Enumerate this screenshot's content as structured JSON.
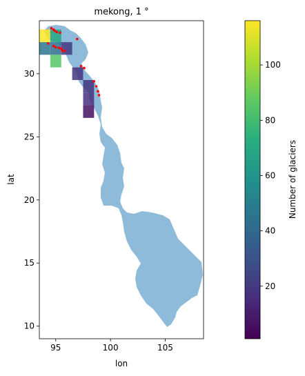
{
  "map": {
    "title": "mekong, 1 °",
    "xlabel": "lon",
    "ylabel": "lat",
    "x_ticks": [
      95,
      100,
      105
    ],
    "y_ticks": [
      10,
      15,
      20,
      25,
      30
    ],
    "xlim": [
      93.5,
      108.5
    ],
    "ylim": [
      9.0,
      34.2
    ],
    "basin_color": "#8fbbda",
    "point_color": "#ff0000"
  },
  "colorbar": {
    "label": "Number of glaciers",
    "ticks": [
      20,
      40,
      60,
      80,
      100
    ],
    "range": [
      1,
      116
    ],
    "colormap": "viridis"
  },
  "chart_data": {
    "type": "heatmap",
    "title": "mekong, 1 °",
    "xlabel": "lon",
    "ylabel": "lat",
    "xlim": [
      93.5,
      108.5
    ],
    "ylim": [
      9.0,
      34.2
    ],
    "cell_size_deg": 1,
    "cells": [
      {
        "lon": 94,
        "lat": 33,
        "count": 116
      },
      {
        "lon": 95,
        "lat": 33,
        "count": 70
      },
      {
        "lon": 94,
        "lat": 32,
        "count": 45
      },
      {
        "lon": 95,
        "lat": 32,
        "count": 42
      },
      {
        "lon": 96,
        "lat": 32,
        "count": 20
      },
      {
        "lon": 95,
        "lat": 31,
        "count": 85
      },
      {
        "lon": 97,
        "lat": 30,
        "count": 18
      },
      {
        "lon": 98,
        "lat": 29,
        "count": 18
      },
      {
        "lon": 98,
        "lat": 28,
        "count": 16
      },
      {
        "lon": 98,
        "lat": 27,
        "count": 6
      }
    ],
    "glacier_points": [
      [
        94.6,
        33.6
      ],
      [
        94.8,
        33.5
      ],
      [
        94.9,
        33.4
      ],
      [
        95.1,
        33.3
      ],
      [
        95.4,
        33.25
      ],
      [
        94.3,
        32.4
      ],
      [
        94.8,
        32.2
      ],
      [
        95.0,
        32.1
      ],
      [
        95.3,
        32.05
      ],
      [
        95.5,
        32.0
      ],
      [
        95.6,
        31.85
      ],
      [
        95.8,
        31.8
      ],
      [
        96.95,
        32.75
      ],
      [
        97.3,
        30.6
      ],
      [
        97.6,
        30.45
      ],
      [
        98.5,
        29.4
      ],
      [
        98.7,
        29.0
      ],
      [
        98.85,
        28.6
      ],
      [
        98.95,
        28.3
      ]
    ]
  }
}
